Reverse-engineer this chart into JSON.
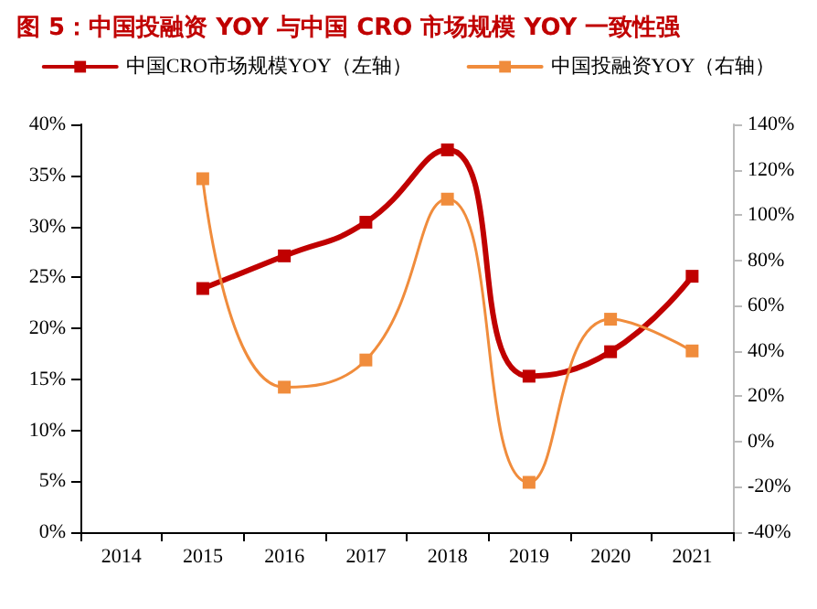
{
  "chart_data": {
    "type": "line",
    "title": "图 5：中国投融资 YOY 与中国 CRO 市场规模 YOY 一致性强",
    "categories": [
      "2014",
      "2015",
      "2016",
      "2017",
      "2018",
      "2019",
      "2020",
      "2021"
    ],
    "series": [
      {
        "name": "中国CRO市场规模YOY（左轴）",
        "color": "#c00000",
        "values": [
          null,
          23.9,
          27.1,
          30.4,
          37.5,
          15.3,
          17.7,
          25.1
        ]
      },
      {
        "name": "中国投融资YOY（右轴）",
        "color": "#f08c3c",
        "axis": "y2",
        "values": [
          null,
          116,
          24,
          36,
          107,
          -18,
          54,
          40
        ]
      }
    ],
    "ylim": [
      0,
      40
    ],
    "yticks": [
      {
        "value": 0,
        "label": "0%"
      },
      {
        "value": 5,
        "label": "5%"
      },
      {
        "value": 10,
        "label": "10%"
      },
      {
        "value": 15,
        "label": "15%"
      },
      {
        "value": 20,
        "label": "20%"
      },
      {
        "value": 25,
        "label": "25%"
      },
      {
        "value": 30,
        "label": "30%"
      },
      {
        "value": 35,
        "label": "35%"
      },
      {
        "value": 40,
        "label": "40%"
      }
    ],
    "y2lim": [
      -40,
      140
    ],
    "y2ticks": [
      {
        "value": -40,
        "label": "-40%"
      },
      {
        "value": -20,
        "label": "-20%"
      },
      {
        "value": 0,
        "label": "0%"
      },
      {
        "value": 20,
        "label": "20%"
      },
      {
        "value": 40,
        "label": "40%"
      },
      {
        "value": 60,
        "label": "60%"
      },
      {
        "value": 80,
        "label": "80%"
      },
      {
        "value": 100,
        "label": "100%"
      },
      {
        "value": 120,
        "label": "120%"
      },
      {
        "value": 140,
        "label": "140%"
      }
    ],
    "grid": false,
    "legend": "top",
    "marker": "square",
    "line_style": "solid"
  }
}
